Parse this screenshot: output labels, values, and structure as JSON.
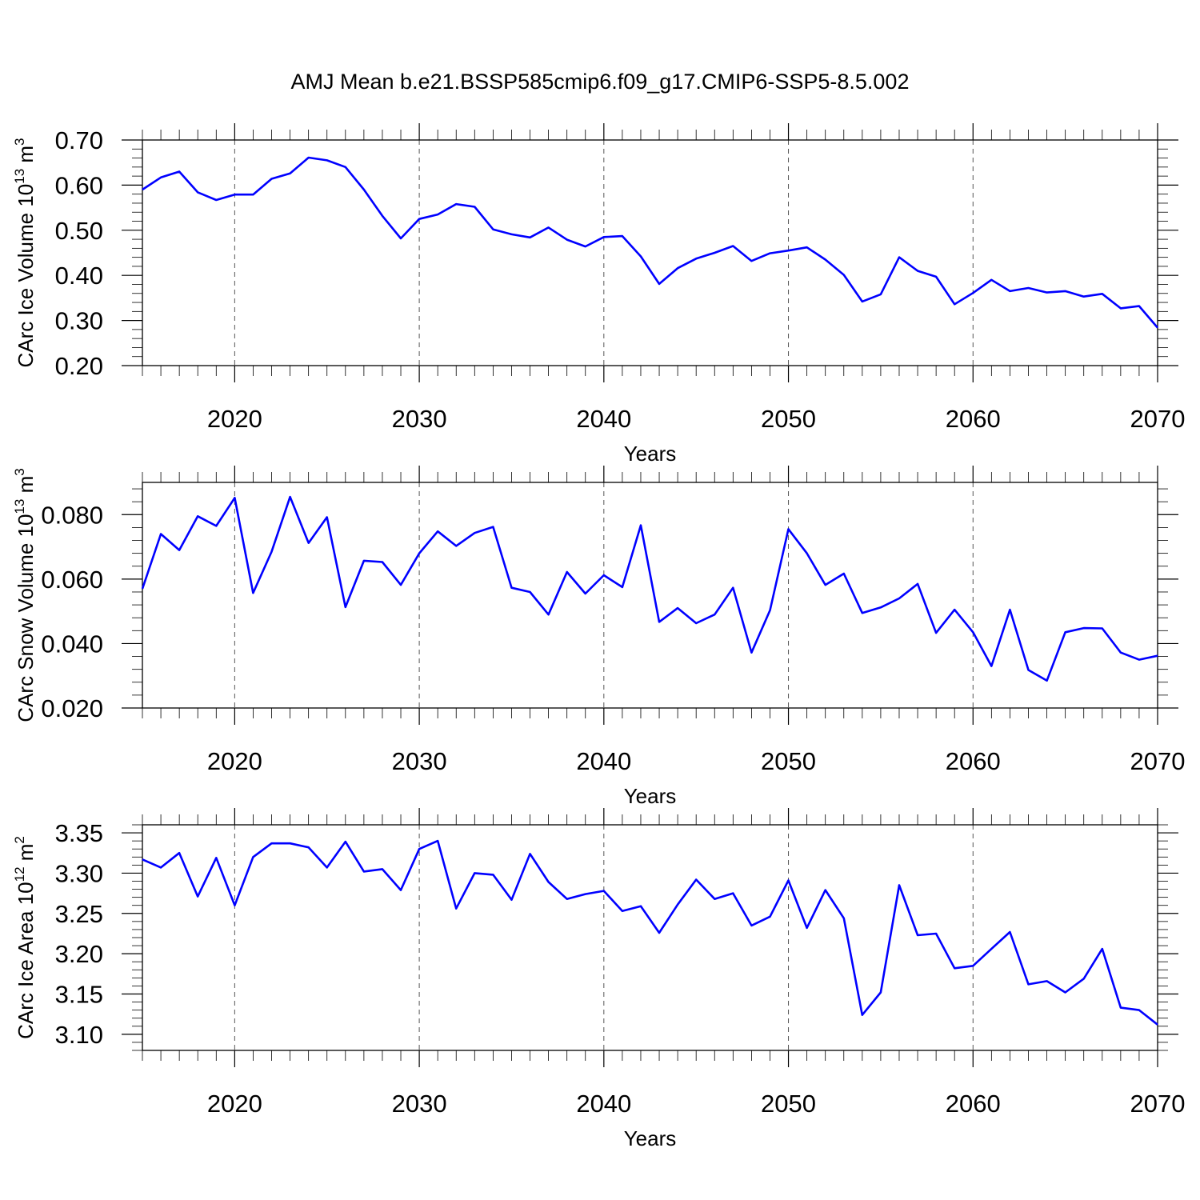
{
  "title": "AMJ Mean b.e21.BSSP585cmip6.f09_g17.CMIP6-SSP5-8.5.002",
  "colors": {
    "series": "#0000ff",
    "grid": "#555555",
    "frame": "#000000"
  },
  "chart_data": [
    {
      "type": "line",
      "xlabel": "Years",
      "ylabel": {
        "text": "CArc Ice Volume 10",
        "exp": "13",
        "unit": " m",
        "unit_exp": "3"
      },
      "xlim": [
        2015,
        2070
      ],
      "ylim": [
        0.2,
        0.7
      ],
      "xticks": [
        2020,
        2030,
        2040,
        2050,
        2060,
        2070
      ],
      "xtick_labels": [
        "2020",
        "2030",
        "2040",
        "2050",
        "2060",
        "2070"
      ],
      "yticks": [
        0.2,
        0.3,
        0.4,
        0.5,
        0.6,
        0.7
      ],
      "ytick_labels": [
        "0.20",
        "0.30",
        "0.40",
        "0.50",
        "0.60",
        "0.70"
      ],
      "grid": "vertical dashed at major x ticks",
      "x": [
        2015,
        2016,
        2017,
        2018,
        2019,
        2020,
        2021,
        2022,
        2023,
        2024,
        2025,
        2026,
        2027,
        2028,
        2029,
        2030,
        2031,
        2032,
        2033,
        2034,
        2035,
        2036,
        2037,
        2038,
        2039,
        2040,
        2041,
        2042,
        2043,
        2044,
        2045,
        2046,
        2047,
        2048,
        2049,
        2050,
        2051,
        2052,
        2053,
        2054,
        2055,
        2056,
        2057,
        2058,
        2059,
        2060,
        2061,
        2062,
        2063,
        2064,
        2065,
        2066,
        2067,
        2068,
        2069,
        2070
      ],
      "series": [
        {
          "values": [
            0.59,
            0.617,
            0.63,
            0.584,
            0.567,
            0.579,
            0.579,
            0.614,
            0.626,
            0.661,
            0.655,
            0.64,
            0.59,
            0.532,
            0.482,
            0.525,
            0.535,
            0.558,
            0.552,
            0.502,
            0.491,
            0.484,
            0.506,
            0.479,
            0.464,
            0.485,
            0.487,
            0.442,
            0.381,
            0.416,
            0.437,
            0.45,
            0.465,
            0.432,
            0.449,
            0.455,
            0.462,
            0.435,
            0.401,
            0.342,
            0.358,
            0.44,
            0.41,
            0.397,
            0.336,
            0.361,
            0.39,
            0.365,
            0.372,
            0.362,
            0.365,
            0.353,
            0.359,
            0.327,
            0.332,
            0.284
          ]
        }
      ]
    },
    {
      "type": "line",
      "xlabel": "Years",
      "ylabel": {
        "text": "CArc Snow Volume 10",
        "exp": "13",
        "unit": " m",
        "unit_exp": "3"
      },
      "xlim": [
        2015,
        2070
      ],
      "ylim": [
        0.02,
        0.09
      ],
      "xticks": [
        2020,
        2030,
        2040,
        2050,
        2060,
        2070
      ],
      "xtick_labels": [
        "2020",
        "2030",
        "2040",
        "2050",
        "2060",
        "2070"
      ],
      "yticks": [
        0.02,
        0.04,
        0.06,
        0.08
      ],
      "ytick_labels": [
        "0.020",
        "0.040",
        "0.060",
        "0.080"
      ],
      "grid": "vertical dashed at major x ticks",
      "x": [
        2015,
        2016,
        2017,
        2018,
        2019,
        2020,
        2021,
        2022,
        2023,
        2024,
        2025,
        2026,
        2027,
        2028,
        2029,
        2030,
        2031,
        2032,
        2033,
        2034,
        2035,
        2036,
        2037,
        2038,
        2039,
        2040,
        2041,
        2042,
        2043,
        2044,
        2045,
        2046,
        2047,
        2048,
        2049,
        2050,
        2051,
        2052,
        2053,
        2054,
        2055,
        2056,
        2057,
        2058,
        2059,
        2060,
        2061,
        2062,
        2063,
        2064,
        2065,
        2066,
        2067,
        2068,
        2069,
        2070
      ],
      "series": [
        {
          "values": [
            0.057,
            0.074,
            0.069,
            0.0795,
            0.0765,
            0.0852,
            0.0557,
            0.0685,
            0.0855,
            0.0712,
            0.0792,
            0.0513,
            0.0657,
            0.0653,
            0.0582,
            0.068,
            0.0748,
            0.0703,
            0.0743,
            0.0762,
            0.0573,
            0.056,
            0.049,
            0.0622,
            0.0555,
            0.0612,
            0.0575,
            0.0767,
            0.0467,
            0.051,
            0.0463,
            0.049,
            0.0573,
            0.0372,
            0.0503,
            0.0755,
            0.068,
            0.0582,
            0.0617,
            0.0495,
            0.0512,
            0.054,
            0.0585,
            0.0433,
            0.0505,
            0.0435,
            0.033,
            0.0505,
            0.0318,
            0.0285,
            0.0435,
            0.0448,
            0.0447,
            0.0372,
            0.035,
            0.0362
          ]
        }
      ]
    },
    {
      "type": "line",
      "xlabel": "Years",
      "ylabel": {
        "text": "CArc Ice Area 10",
        "exp": "12",
        "unit": " m",
        "unit_exp": "2"
      },
      "xlim": [
        2015,
        2070
      ],
      "ylim": [
        3.08,
        3.36
      ],
      "xticks": [
        2020,
        2030,
        2040,
        2050,
        2060,
        2070
      ],
      "xtick_labels": [
        "2020",
        "2030",
        "2040",
        "2050",
        "2060",
        "2070"
      ],
      "yticks": [
        3.1,
        3.15,
        3.2,
        3.25,
        3.3,
        3.35
      ],
      "ytick_labels": [
        "3.10",
        "3.15",
        "3.20",
        "3.25",
        "3.30",
        "3.35"
      ],
      "grid": "vertical dashed at major x ticks",
      "x": [
        2015,
        2016,
        2017,
        2018,
        2019,
        2020,
        2021,
        2022,
        2023,
        2024,
        2025,
        2026,
        2027,
        2028,
        2029,
        2030,
        2031,
        2032,
        2033,
        2034,
        2035,
        2036,
        2037,
        2038,
        2039,
        2040,
        2041,
        2042,
        2043,
        2044,
        2045,
        2046,
        2047,
        2048,
        2049,
        2050,
        2051,
        2052,
        2053,
        2054,
        2055,
        2056,
        2057,
        2058,
        2059,
        2060,
        2061,
        2062,
        2063,
        2064,
        2065,
        2066,
        2067,
        2068,
        2069,
        2070
      ],
      "series": [
        {
          "values": [
            3.317,
            3.307,
            3.325,
            3.271,
            3.319,
            3.26,
            3.32,
            3.337,
            3.337,
            3.332,
            3.307,
            3.339,
            3.302,
            3.305,
            3.279,
            3.33,
            3.34,
            3.256,
            3.3,
            3.298,
            3.267,
            3.324,
            3.289,
            3.268,
            3.274,
            3.278,
            3.253,
            3.259,
            3.226,
            3.261,
            3.292,
            3.268,
            3.275,
            3.235,
            3.246,
            3.291,
            3.232,
            3.279,
            3.244,
            3.124,
            3.152,
            3.285,
            3.223,
            3.225,
            3.182,
            3.185,
            3.206,
            3.227,
            3.162,
            3.166,
            3.152,
            3.169,
            3.206,
            3.133,
            3.13,
            3.112
          ]
        }
      ]
    }
  ]
}
